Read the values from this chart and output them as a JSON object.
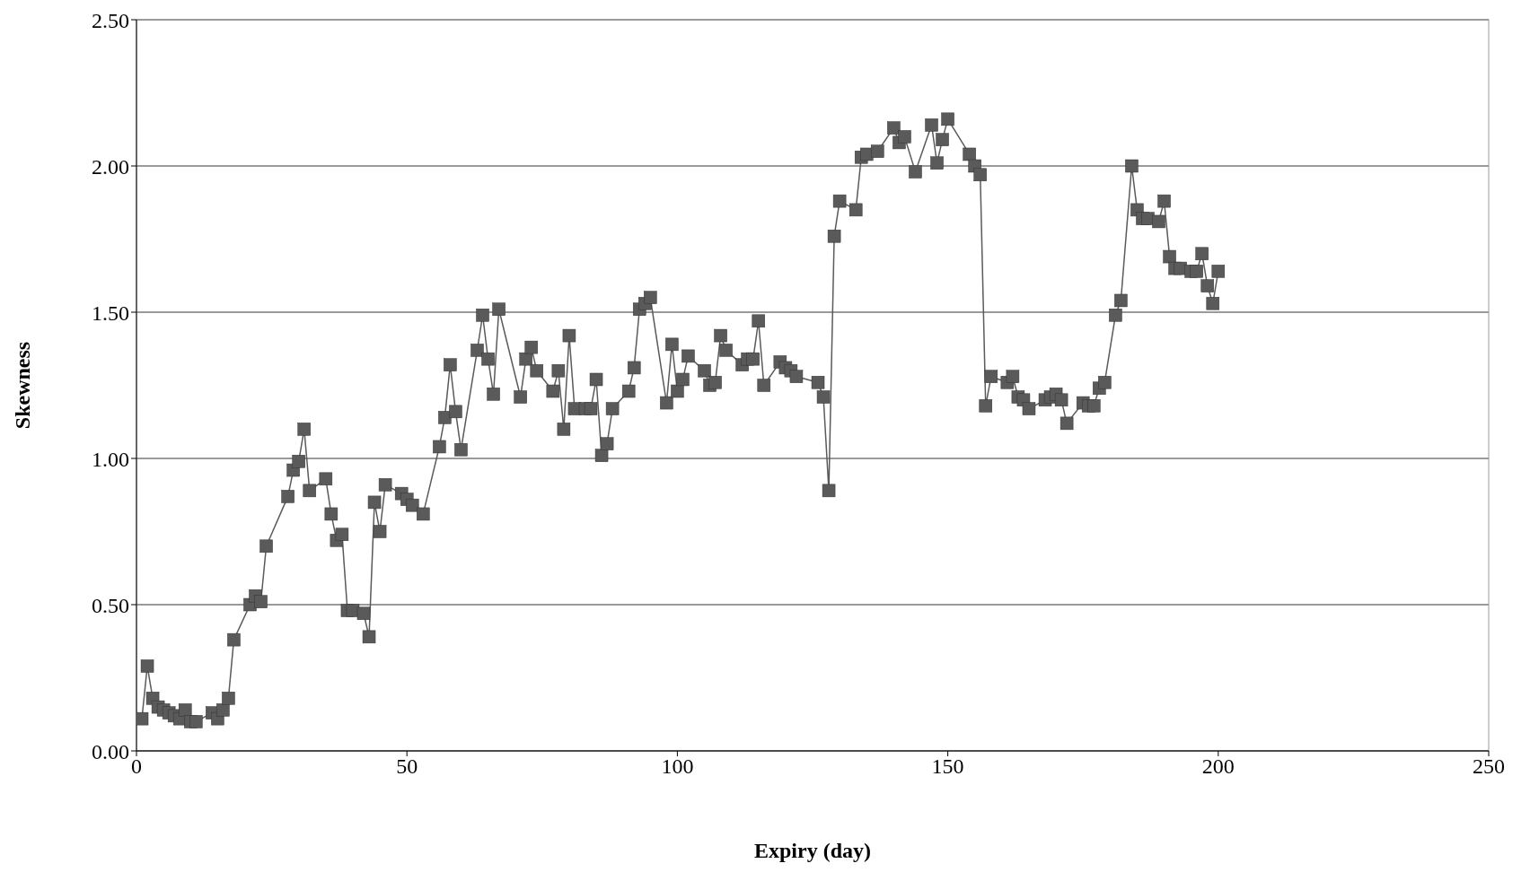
{
  "chart_data": {
    "type": "line",
    "xlabel": "Expiry (day)",
    "ylabel": "Skewness",
    "x": [
      1,
      2,
      3,
      4,
      5,
      6,
      7,
      8,
      9,
      10,
      11,
      14,
      15,
      16,
      17,
      18,
      21,
      22,
      23,
      24,
      28,
      29,
      30,
      31,
      32,
      35,
      36,
      37,
      38,
      39,
      40,
      42,
      43,
      44,
      45,
      46,
      49,
      50,
      51,
      53,
      56,
      57,
      58,
      59,
      60,
      63,
      64,
      65,
      66,
      67,
      71,
      72,
      73,
      74,
      77,
      78,
      79,
      80,
      81,
      83,
      84,
      85,
      86,
      87,
      88,
      91,
      92,
      93,
      94,
      95,
      98,
      99,
      100,
      101,
      102,
      105,
      106,
      107,
      108,
      109,
      112,
      113,
      114,
      115,
      116,
      119,
      120,
      121,
      122,
      126,
      127,
      128,
      129,
      130,
      133,
      134,
      135,
      137,
      140,
      141,
      142,
      144,
      147,
      148,
      149,
      150,
      154,
      155,
      156,
      157,
      158,
      161,
      162,
      163,
      164,
      165,
      168,
      169,
      170,
      171,
      172,
      175,
      176,
      177,
      178,
      179,
      181,
      182,
      184,
      185,
      186,
      187,
      189,
      190,
      191,
      192,
      193,
      195,
      196,
      197,
      198,
      199,
      200
    ],
    "series": [
      {
        "color": "#5a5a5a",
        "values": [
          0.11,
          0.29,
          0.18,
          0.15,
          0.14,
          0.13,
          0.12,
          0.11,
          0.14,
          0.1,
          0.1,
          0.13,
          0.11,
          0.14,
          0.18,
          0.38,
          0.5,
          0.53,
          0.51,
          0.7,
          0.87,
          0.96,
          0.99,
          1.1,
          0.89,
          0.93,
          0.81,
          0.72,
          0.74,
          0.48,
          0.48,
          0.47,
          0.39,
          0.85,
          0.75,
          0.91,
          0.88,
          0.86,
          0.84,
          0.81,
          1.04,
          1.14,
          1.32,
          1.16,
          1.03,
          1.37,
          1.49,
          1.34,
          1.22,
          1.51,
          1.21,
          1.34,
          1.38,
          1.3,
          1.23,
          1.3,
          1.1,
          1.42,
          1.17,
          1.17,
          1.17,
          1.27,
          1.01,
          1.05,
          1.17,
          1.23,
          1.31,
          1.51,
          1.53,
          1.55,
          1.19,
          1.39,
          1.23,
          1.27,
          1.35,
          1.3,
          1.25,
          1.26,
          1.42,
          1.37,
          1.32,
          1.34,
          1.34,
          1.47,
          1.25,
          1.33,
          1.31,
          1.3,
          1.28,
          1.26,
          1.21,
          0.89,
          1.76,
          1.88,
          1.85,
          2.03,
          2.04,
          2.05,
          2.13,
          2.08,
          2.1,
          1.98,
          2.14,
          2.01,
          2.09,
          2.16,
          2.04,
          2.0,
          1.97,
          1.18,
          1.28,
          1.26,
          1.28,
          1.21,
          1.2,
          1.17,
          1.2,
          1.21,
          1.22,
          1.2,
          1.12,
          1.19,
          1.18,
          1.18,
          1.24,
          1.26,
          1.49,
          1.54,
          2.0,
          1.85,
          1.82,
          1.82,
          1.81,
          1.88,
          1.69,
          1.65,
          1.65,
          1.64,
          1.64,
          1.7,
          1.59,
          1.53,
          1.64
        ]
      }
    ],
    "xlim": [
      0,
      250
    ],
    "xticks": [
      0,
      50,
      100,
      150,
      200,
      250
    ],
    "ylim": [
      0,
      2.5
    ],
    "yticks": [
      {
        "value": 0,
        "label": "0.00"
      },
      {
        "value": 0.5,
        "label": "0.50"
      },
      {
        "value": 1,
        "label": "1.00"
      },
      {
        "value": 1.5,
        "label": "1.50"
      },
      {
        "value": 2,
        "label": "2.00"
      },
      {
        "value": 2.5,
        "label": "2.50"
      }
    ],
    "grid": "y",
    "legend": false,
    "marker": "square",
    "line_style": "solid"
  }
}
